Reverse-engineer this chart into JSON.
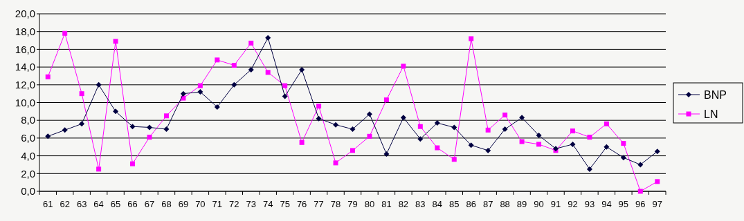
{
  "chart_data": {
    "type": "line",
    "categories": [
      "61",
      "62",
      "63",
      "64",
      "65",
      "66",
      "67",
      "68",
      "69",
      "70",
      "71",
      "72",
      "73",
      "74",
      "75",
      "76",
      "77",
      "78",
      "79",
      "80",
      "81",
      "82",
      "83",
      "84",
      "85",
      "86",
      "87",
      "88",
      "89",
      "90",
      "91",
      "92",
      "93",
      "94",
      "95",
      "96",
      "97"
    ],
    "series": [
      {
        "name": "BNP",
        "color": "#000040",
        "marker": "diamond",
        "values": [
          6.2,
          6.9,
          7.6,
          12.0,
          9.0,
          7.3,
          7.2,
          7.0,
          11.0,
          11.2,
          9.5,
          12.0,
          13.7,
          17.3,
          10.7,
          13.7,
          8.2,
          7.5,
          7.0,
          8.7,
          4.2,
          8.3,
          5.9,
          7.7,
          7.2,
          5.2,
          4.6,
          7.0,
          8.3,
          6.3,
          4.8,
          5.3,
          2.5,
          5.0,
          3.8,
          3.0,
          4.5
        ]
      },
      {
        "name": "LN",
        "color": "#ff00ff",
        "marker": "square",
        "values": [
          12.9,
          17.8,
          11.0,
          2.5,
          16.9,
          3.1,
          6.1,
          8.5,
          10.5,
          11.9,
          14.8,
          14.2,
          16.7,
          13.4,
          11.9,
          5.5,
          9.6,
          3.2,
          4.6,
          6.2,
          10.3,
          14.1,
          7.3,
          4.9,
          3.6,
          17.2,
          6.9,
          8.6,
          5.6,
          5.3,
          4.6,
          6.8,
          6.1,
          7.6,
          5.4,
          0.0,
          1.1
        ]
      }
    ],
    "ylim": [
      0,
      20
    ],
    "yticks": [
      {
        "value": 0,
        "label": "0,0"
      },
      {
        "value": 2,
        "label": "2,0"
      },
      {
        "value": 4,
        "label": "4,0"
      },
      {
        "value": 6,
        "label": "6,0"
      },
      {
        "value": 8,
        "label": "8,0"
      },
      {
        "value": 10,
        "label": "10,0"
      },
      {
        "value": 12,
        "label": "12,0"
      },
      {
        "value": 14,
        "label": "14,0"
      },
      {
        "value": 16,
        "label": "16,0"
      },
      {
        "value": 18,
        "label": "18,0"
      },
      {
        "value": 20,
        "label": "20,0"
      }
    ],
    "grid": "y",
    "legend": "right",
    "line_style": "solid"
  }
}
